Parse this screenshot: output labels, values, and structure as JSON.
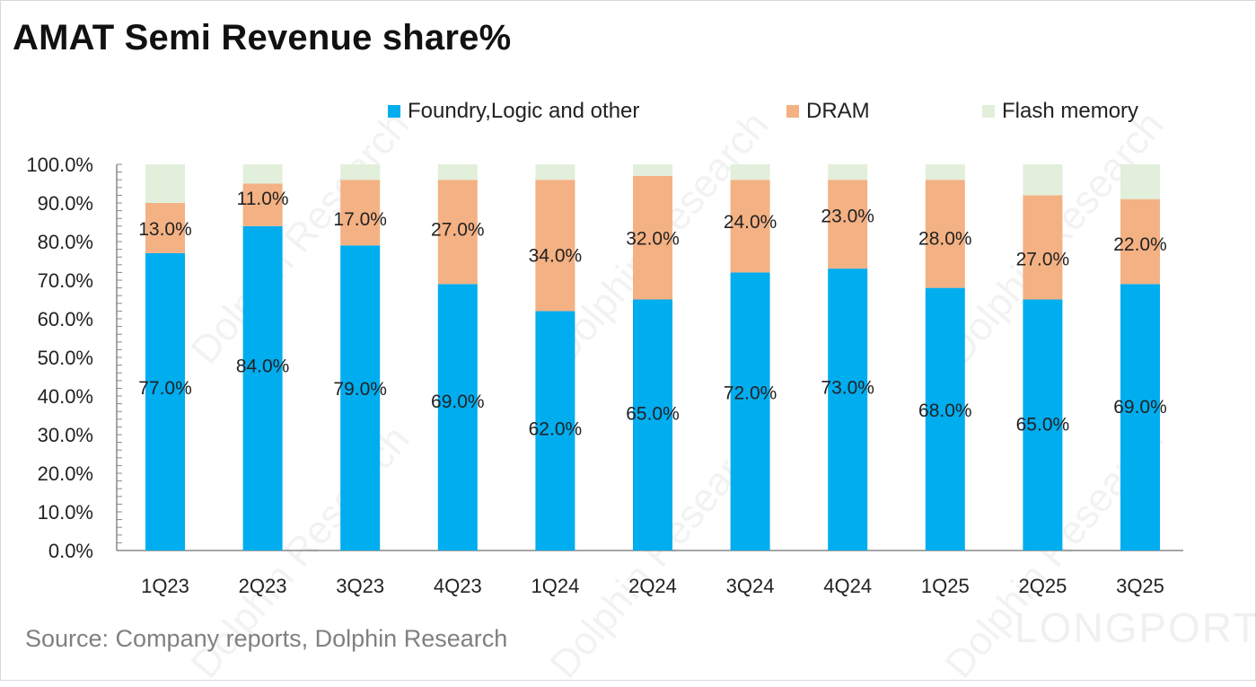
{
  "chart_data": {
    "type": "bar",
    "stacked": true,
    "title": "AMAT Semi Revenue share%",
    "xlabel": "",
    "ylabel": "",
    "ylim": [
      0,
      100
    ],
    "yticks": [
      "0.0%",
      "10.0%",
      "20.0%",
      "30.0%",
      "40.0%",
      "50.0%",
      "60.0%",
      "70.0%",
      "80.0%",
      "90.0%",
      "100.0%"
    ],
    "categories": [
      "1Q23",
      "2Q23",
      "3Q23",
      "4Q23",
      "1Q24",
      "2Q24",
      "3Q24",
      "4Q24",
      "1Q25",
      "2Q25",
      "3Q25"
    ],
    "series": [
      {
        "name": "Foundry,Logic and other",
        "color": "#00adef",
        "values": [
          77,
          84,
          79,
          69,
          62,
          65,
          72,
          73,
          68,
          65,
          69
        ],
        "labels": [
          "77.0%",
          "84.0%",
          "79.0%",
          "69.0%",
          "62.0%",
          "65.0%",
          "72.0%",
          "73.0%",
          "68.0%",
          "65.0%",
          "69.0%"
        ]
      },
      {
        "name": "DRAM",
        "color": "#f4b183",
        "values": [
          13,
          11,
          17,
          27,
          34,
          32,
          24,
          23,
          28,
          27,
          22
        ],
        "labels": [
          "13.0%",
          "11.0%",
          "17.0%",
          "27.0%",
          "34.0%",
          "32.0%",
          "24.0%",
          "23.0%",
          "28.0%",
          "27.0%",
          "22.0%"
        ]
      },
      {
        "name": "Flash memory",
        "color": "#e2efda",
        "values": [
          10,
          5,
          4,
          4,
          4,
          3,
          4,
          4,
          4,
          8,
          9
        ],
        "labels": []
      }
    ],
    "legend_position": "top-right",
    "grid": false
  },
  "source": "Source: Company reports, Dolphin Research",
  "watermarks": {
    "primary": "Dolphin Research",
    "brand": "LONGPORT"
  }
}
